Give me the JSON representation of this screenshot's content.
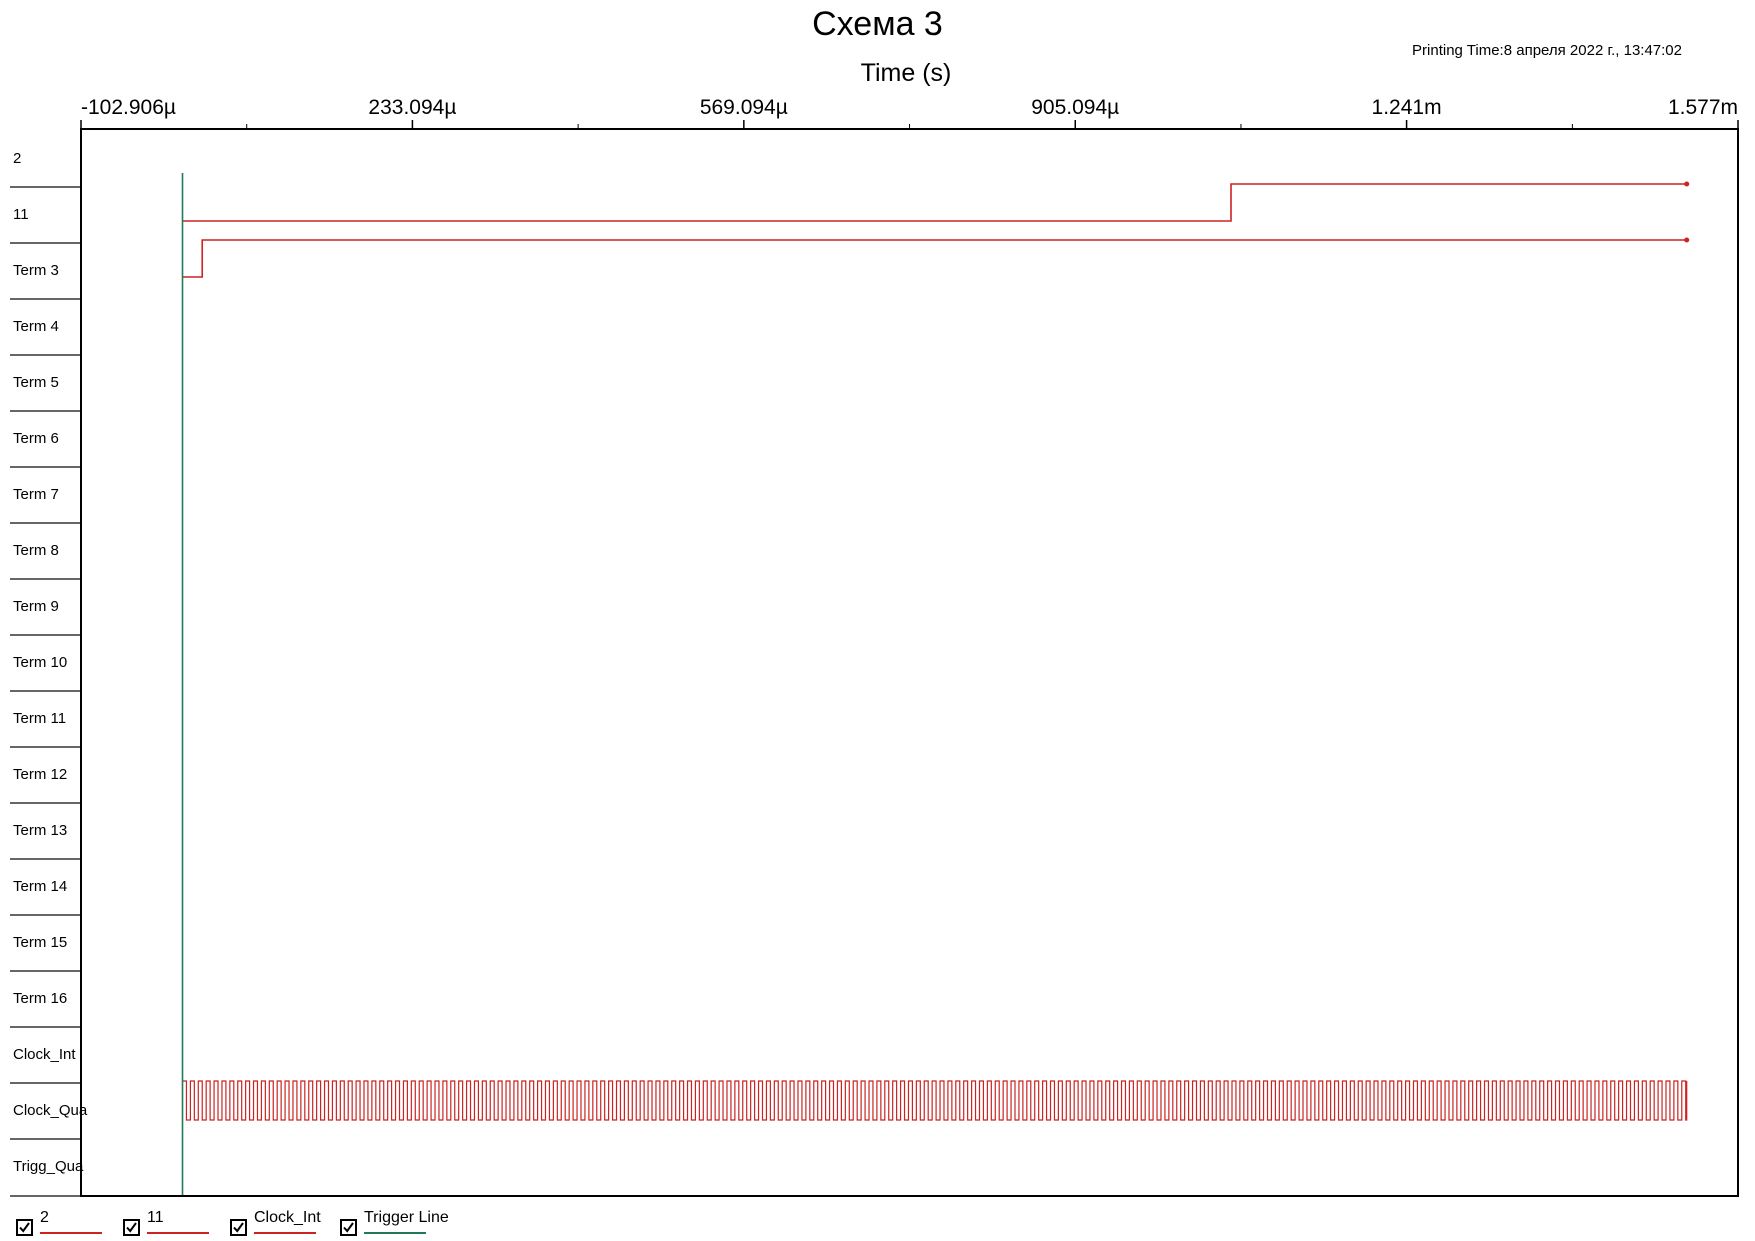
{
  "title": "Схема 3",
  "printing_time": "Printing Time:8 апреля 2022 г., 13:47:02",
  "colors": {
    "signal": "#cc2222",
    "trigger": "#1f7a55",
    "axis": "#000000",
    "row_line": "#333333"
  },
  "chart_data": {
    "type": "line",
    "subtype": "logic-analyzer-timing-diagram",
    "xlabel": "Time (s)",
    "xlim": [
      -0.000102906,
      0.001577
    ],
    "x_tick_labels": [
      "-102.906µ",
      "233.094µ",
      "569.094µ",
      "905.094µ",
      "1.241m",
      "1.577m"
    ],
    "x_tick_values": [
      -0.000102906,
      0.000233094,
      0.000569094,
      0.000905094,
      0.001241,
      0.001577
    ],
    "x_minor_tick_values": [
      6.5094e-05,
      0.000401094,
      0.000737094,
      0.001073094,
      0.001409094
    ],
    "channels": [
      "2",
      "11",
      "Term 3",
      "Term 4",
      "Term 5",
      "Term 6",
      "Term 7",
      "Term 8",
      "Term 9",
      "Term 10",
      "Term 11",
      "Term 12",
      "Term 13",
      "Term 14",
      "Term 15",
      "Term 16",
      "Clock_Int",
      "Clock_Qua",
      "Trigg_Qua"
    ],
    "trigger_time": 0,
    "end_time": 0.001525,
    "series": [
      {
        "name": "2",
        "channel_index": 1,
        "steps": [
          [
            0,
            0
          ],
          [
            0.001063,
            1
          ]
        ],
        "end_marker": true
      },
      {
        "name": "11",
        "channel_index": 2,
        "steps": [
          [
            0,
            0
          ],
          [
            2e-05,
            1
          ]
        ],
        "end_marker": true
      },
      {
        "name": "Clock_Int",
        "channel_index": 17,
        "clock_period": 8e-06,
        "clock_start": 4e-06
      }
    ],
    "legend": [
      {
        "label": "2",
        "color": "#cc2222",
        "checked": true
      },
      {
        "label": "11",
        "color": "#cc2222",
        "checked": true
      },
      {
        "label": "Clock_Int",
        "color": "#cc2222",
        "checked": true
      },
      {
        "label": "Trigger Line",
        "color": "#1f7a55",
        "checked": true
      }
    ],
    "legend_position": "bottom-left",
    "grid": false
  }
}
